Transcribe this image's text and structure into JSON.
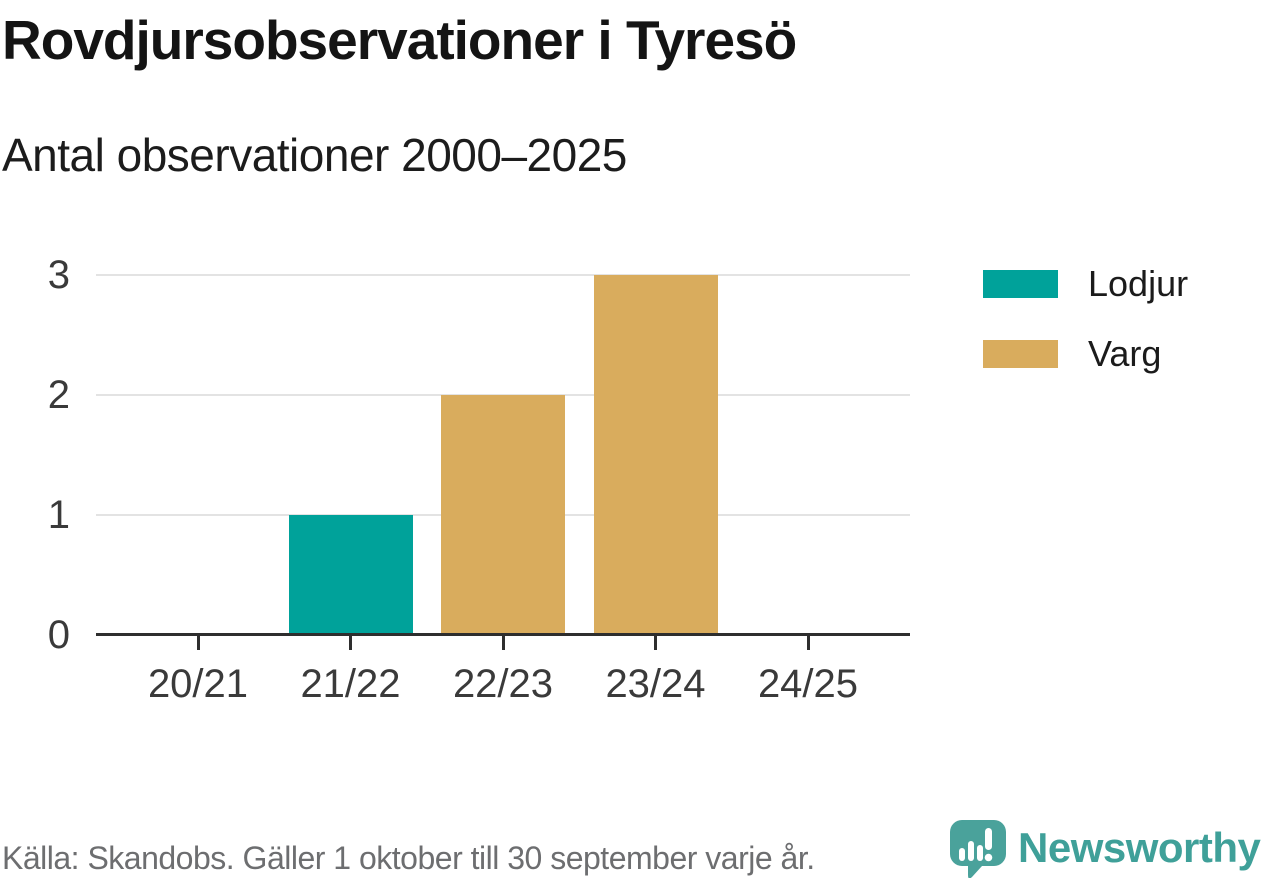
{
  "title": "Rovdjursobservationer i Tyresö",
  "subtitle": "Antal observationer 2000–2025",
  "footer": {
    "source_text": "Källa: Skandobs. Gäller 1 oktober till 30 september varje år.",
    "brand_name": "Newsworthy"
  },
  "colors": {
    "lodjur": "#00a29a",
    "varg": "#d9ac5d",
    "axis": "#2e2e2e",
    "gridline": "#e3e3e3",
    "brand_teal": "#3fa099",
    "icon_teal": "#4aa29b"
  },
  "chart_data": {
    "type": "bar",
    "categories": [
      "20/21",
      "21/22",
      "22/23",
      "23/24",
      "24/25"
    ],
    "series": [
      {
        "name": "Lodjur",
        "color_key": "lodjur",
        "values": [
          0,
          1,
          0,
          0,
          0
        ]
      },
      {
        "name": "Varg",
        "color_key": "varg",
        "values": [
          0,
          0,
          2,
          3,
          0
        ]
      }
    ],
    "yticks": [
      0,
      1,
      2,
      3
    ],
    "ylim": [
      0,
      3
    ],
    "grid": true,
    "legend_position": "right",
    "xlabel": "",
    "ylabel": ""
  }
}
